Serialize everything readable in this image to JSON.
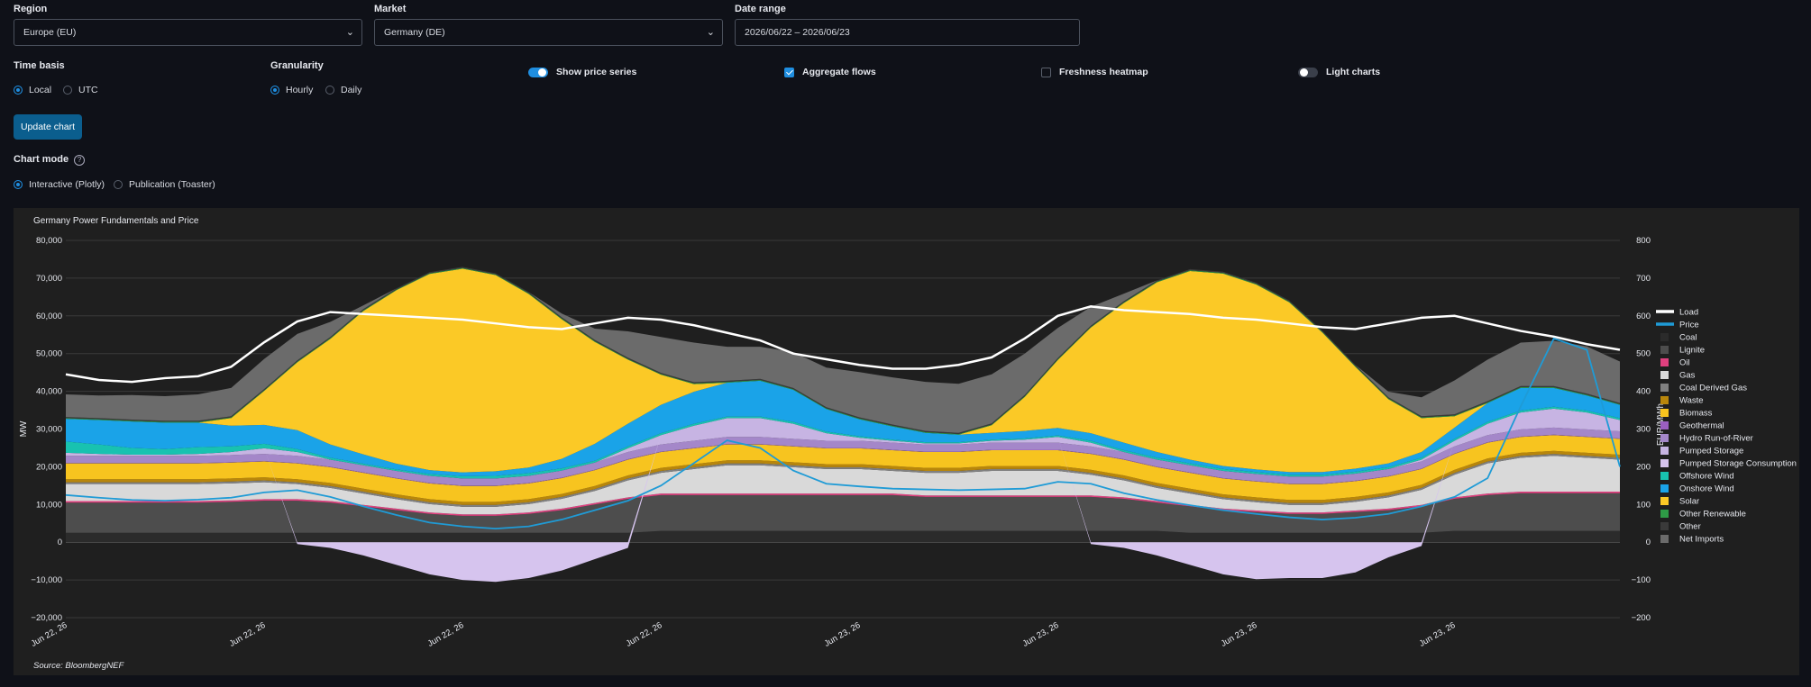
{
  "controls": {
    "region": {
      "label": "Region",
      "value": "Europe (EU)"
    },
    "market": {
      "label": "Market",
      "value": "Germany (DE)"
    },
    "date_range": {
      "label": "Date range",
      "value": "2026/06/22 – 2026/06/23"
    },
    "time_basis": {
      "label": "Time basis",
      "options": [
        "Local",
        "UTC"
      ],
      "selected": "Local"
    },
    "granularity": {
      "label": "Granularity",
      "options": [
        "Hourly",
        "Daily"
      ],
      "selected": "Hourly"
    },
    "toggles": {
      "show_price_series": {
        "label": "Show price series",
        "on": true
      },
      "aggregate_flows": {
        "label": "Aggregate flows",
        "on": true
      },
      "freshness_heatmap": {
        "label": "Freshness heatmap",
        "on": false
      },
      "light_charts": {
        "label": "Light charts",
        "on": false
      }
    },
    "update_button": "Update chart",
    "chart_mode": {
      "label": "Chart mode",
      "help_icon": "?",
      "options": [
        "Interactive (Plotly)",
        "Publication (Toaster)"
      ],
      "selected": "Interactive (Plotly)"
    }
  },
  "chart_data": {
    "type": "area",
    "title": "Germany Power Fundamentals and Price",
    "source": "Source: BloombergNEF",
    "ylabel": "MW",
    "y2label": "EUR/MWh",
    "ylim": [
      -20000,
      80000
    ],
    "y2lim": [
      -200,
      800
    ],
    "yticks": [
      "80,000",
      "70,000",
      "60,000",
      "50,000",
      "40,000",
      "30,000",
      "20,000",
      "10,000",
      "0",
      "−10,000",
      "−20,000"
    ],
    "y2ticks": [
      "800",
      "700",
      "600",
      "500",
      "400",
      "300",
      "200",
      "100",
      "0",
      "−100",
      "−200"
    ],
    "xtick_labels": [
      "Jun 22, 26",
      "Jun 22, 26",
      "Jun 22, 26",
      "Jun 22, 26",
      "Jun 23, 26",
      "Jun 23, 26",
      "Jun 23, 26",
      "Jun 23, 26"
    ],
    "x": [
      0,
      1,
      2,
      3,
      4,
      5,
      6,
      7,
      8,
      9,
      10,
      11,
      12,
      13,
      14,
      15,
      16,
      17,
      18,
      19,
      20,
      21,
      22,
      23,
      24,
      25,
      26,
      27,
      28,
      29,
      30,
      31,
      32,
      33,
      34,
      35,
      36,
      37,
      38,
      39,
      40,
      41,
      42,
      43,
      44,
      45,
      46,
      47
    ],
    "legend_position": "right",
    "series": [
      {
        "name": "Load",
        "kind": "line",
        "axis": "y",
        "color": "#ffffff",
        "values": [
          44500,
          43000,
          42500,
          43500,
          44000,
          46500,
          53000,
          58500,
          61000,
          60500,
          60000,
          59500,
          59000,
          58000,
          57000,
          56500,
          58000,
          59500,
          59000,
          57500,
          55500,
          53500,
          50000,
          48500,
          47000,
          46000,
          46000,
          47000,
          49000,
          54000,
          60000,
          62500,
          61500,
          61000,
          60500,
          59500,
          59000,
          58000,
          57000,
          56500,
          58000,
          59500,
          60000,
          58000,
          56000,
          54500,
          52500,
          51000
        ]
      },
      {
        "name": "Price",
        "kind": "line",
        "axis": "y2",
        "color": "#1f9bd6",
        "values": [
          125,
          118,
          112,
          110,
          113,
          118,
          132,
          138,
          120,
          95,
          72,
          52,
          42,
          36,
          42,
          60,
          85,
          110,
          150,
          210,
          270,
          250,
          190,
          155,
          148,
          142,
          140,
          138,
          140,
          142,
          160,
          155,
          130,
          112,
          98,
          85,
          75,
          66,
          60,
          65,
          75,
          95,
          120,
          170,
          360,
          540,
          510,
          200
        ]
      },
      {
        "name": "Coal",
        "color": "#2b2b2b",
        "values": [
          2500,
          2500,
          2500,
          2500,
          2500,
          2500,
          2500,
          2500,
          2500,
          2500,
          2500,
          2500,
          2500,
          2500,
          2500,
          2500,
          2500,
          2500,
          3000,
          3000,
          3000,
          3000,
          3000,
          3000,
          3000,
          3000,
          3000,
          3000,
          3000,
          3000,
          3000,
          3000,
          3000,
          3000,
          2500,
          2500,
          2500,
          2500,
          2500,
          2500,
          2500,
          2500,
          3000,
          3000,
          3000,
          3000,
          3000,
          3000
        ]
      },
      {
        "name": "Lignite",
        "color": "#4d4d4d",
        "values": [
          8000,
          8000,
          8000,
          8000,
          8000,
          8200,
          8500,
          8500,
          8000,
          7000,
          6000,
          5000,
          4500,
          4500,
          5000,
          6000,
          7500,
          9000,
          9500,
          9500,
          9500,
          9500,
          9500,
          9500,
          9500,
          9500,
          9000,
          9000,
          9000,
          9000,
          9000,
          9000,
          8500,
          7500,
          7000,
          6000,
          5500,
          5000,
          5000,
          5500,
          6000,
          7000,
          8500,
          9500,
          10000,
          10000,
          10000,
          10000
        ]
      },
      {
        "name": "Oil",
        "color": "#e0407f",
        "values": [
          400,
          400,
          400,
          400,
          400,
          400,
          400,
          400,
          400,
          400,
          400,
          400,
          400,
          400,
          400,
          400,
          400,
          400,
          400,
          400,
          400,
          400,
          400,
          400,
          400,
          400,
          400,
          400,
          400,
          400,
          400,
          400,
          400,
          400,
          400,
          400,
          400,
          400,
          400,
          400,
          400,
          400,
          400,
          400,
          400,
          400,
          400,
          400
        ]
      },
      {
        "name": "Gas",
        "color": "#d9d9d9",
        "values": [
          4500,
          4500,
          4500,
          4500,
          4500,
          4500,
          4500,
          4000,
          3500,
          3000,
          2500,
          2200,
          2000,
          2000,
          2200,
          2600,
          3200,
          4500,
          5500,
          6500,
          7500,
          7500,
          7000,
          6500,
          6500,
          6000,
          6000,
          6000,
          6500,
          6500,
          6500,
          5500,
          4500,
          3500,
          3000,
          2500,
          2200,
          2000,
          2000,
          2300,
          3000,
          4000,
          6000,
          8000,
          9000,
          9500,
          9000,
          8500
        ]
      },
      {
        "name": "Coal Derived Gas",
        "color": "#808080",
        "values": [
          500,
          500,
          500,
          500,
          500,
          500,
          500,
          500,
          500,
          500,
          500,
          500,
          500,
          500,
          500,
          500,
          500,
          500,
          500,
          500,
          500,
          500,
          500,
          500,
          500,
          500,
          500,
          500,
          500,
          500,
          500,
          500,
          500,
          500,
          500,
          500,
          500,
          500,
          500,
          500,
          500,
          500,
          500,
          500,
          500,
          500,
          500,
          500
        ]
      },
      {
        "name": "Waste",
        "color": "#b8860b",
        "values": [
          800,
          800,
          800,
          800,
          800,
          800,
          800,
          800,
          800,
          800,
          800,
          800,
          800,
          800,
          800,
          800,
          800,
          800,
          800,
          800,
          800,
          800,
          800,
          800,
          800,
          800,
          800,
          800,
          800,
          800,
          800,
          800,
          800,
          800,
          800,
          800,
          800,
          800,
          800,
          800,
          800,
          800,
          800,
          800,
          800,
          800,
          800,
          800
        ]
      },
      {
        "name": "Biomass",
        "color": "#f7c41f",
        "values": [
          4200,
          4200,
          4200,
          4200,
          4200,
          4200,
          4200,
          4200,
          4200,
          4200,
          4200,
          4200,
          4200,
          4200,
          4200,
          4200,
          4200,
          4200,
          4200,
          4200,
          4200,
          4200,
          4200,
          4200,
          4200,
          4200,
          4200,
          4200,
          4200,
          4200,
          4200,
          4200,
          4200,
          4200,
          4200,
          4200,
          4200,
          4200,
          4200,
          4200,
          4200,
          4200,
          4200,
          4200,
          4200,
          4200,
          4200,
          4200
        ]
      },
      {
        "name": "Geothermal",
        "color": "#9b5fc0",
        "values": [
          100,
          100,
          100,
          100,
          100,
          100,
          100,
          100,
          100,
          100,
          100,
          100,
          100,
          100,
          100,
          100,
          100,
          100,
          100,
          100,
          100,
          100,
          100,
          100,
          100,
          100,
          100,
          100,
          100,
          100,
          100,
          100,
          100,
          100,
          100,
          100,
          100,
          100,
          100,
          100,
          100,
          100,
          100,
          100,
          100,
          100,
          100,
          100
        ]
      },
      {
        "name": "Hydro Run-of-River",
        "color": "#a487c9",
        "values": [
          1900,
          1900,
          1900,
          1900,
          1900,
          1900,
          1900,
          1900,
          1900,
          1900,
          1900,
          1900,
          1900,
          1900,
          1900,
          1900,
          1900,
          1900,
          1900,
          1900,
          1900,
          1900,
          1900,
          1900,
          1900,
          1900,
          1900,
          1900,
          1900,
          1900,
          1900,
          1900,
          1900,
          1900,
          1900,
          1900,
          1900,
          1900,
          1900,
          1900,
          1900,
          1900,
          1900,
          1900,
          1900,
          1900,
          1900,
          1900
        ]
      },
      {
        "name": "Pumped Storage",
        "color": "#c7b4e3",
        "values": [
          800,
          500,
          300,
          300,
          500,
          800,
          1500,
          1000,
          0,
          0,
          0,
          0,
          0,
          0,
          0,
          0,
          0,
          1000,
          2500,
          4000,
          5000,
          5000,
          4000,
          2000,
          800,
          500,
          300,
          300,
          500,
          800,
          1500,
          1000,
          0,
          0,
          0,
          0,
          0,
          0,
          0,
          0,
          0,
          500,
          1500,
          3000,
          4500,
          5000,
          4500,
          3000
        ]
      },
      {
        "name": "Pumped Storage Consumption",
        "color": "#d6c4ee",
        "values": [
          0,
          0,
          0,
          0,
          0,
          0,
          0,
          -500,
          -1500,
          -3500,
          -6000,
          -8500,
          -10000,
          -10500,
          -9500,
          -7500,
          -4500,
          -1500,
          0,
          0,
          0,
          0,
          0,
          0,
          0,
          0,
          0,
          0,
          0,
          0,
          0,
          -500,
          -1500,
          -3500,
          -6000,
          -8500,
          -9800,
          -9500,
          -9500,
          -8000,
          -4000,
          -1000,
          0,
          0,
          0,
          0,
          0,
          0
        ]
      },
      {
        "name": "Offshore Wind",
        "color": "#18c2b0",
        "values": [
          3000,
          2500,
          1800,
          1500,
          1800,
          1500,
          1200,
          800,
          500,
          400,
          400,
          500,
          600,
          700,
          700,
          600,
          500,
          500,
          500,
          500,
          400,
          400,
          500,
          400,
          400,
          300,
          300,
          300,
          300,
          300,
          400,
          500,
          500,
          500,
          500,
          500,
          500,
          500,
          500,
          500,
          500,
          500,
          500,
          500,
          500,
          500,
          500,
          500
        ]
      },
      {
        "name": "Onshore Wind",
        "color": "#1aa3e8",
        "values": [
          6000,
          6500,
          7000,
          7000,
          6500,
          5500,
          5000,
          5000,
          3500,
          2500,
          1500,
          1000,
          1000,
          1200,
          1500,
          2500,
          4500,
          6000,
          7500,
          8500,
          9000,
          9500,
          8500,
          6000,
          4500,
          3500,
          2500,
          2000,
          1800,
          2000,
          2000,
          2000,
          2000,
          1500,
          1000,
          800,
          700,
          700,
          700,
          800,
          1000,
          1500,
          3000,
          5000,
          6000,
          5000,
          4000,
          3500
        ]
      },
      {
        "name": "Solar",
        "color": "#fbc926",
        "values": [
          0,
          0,
          0,
          0,
          0,
          2000,
          9000,
          18000,
          28000,
          38000,
          46000,
          52000,
          54000,
          52000,
          46000,
          37000,
          27000,
          17000,
          8000,
          2000,
          0,
          0,
          0,
          0,
          0,
          0,
          0,
          0,
          2000,
          9000,
          18000,
          28000,
          37000,
          45000,
          50000,
          51000,
          49000,
          45000,
          37000,
          27000,
          17000,
          9000,
          3000,
          0,
          0,
          0,
          0,
          0
        ]
      },
      {
        "name": "Other Renewable",
        "color": "#2e9a46",
        "values": [
          200,
          200,
          200,
          200,
          200,
          200,
          200,
          200,
          200,
          200,
          200,
          200,
          200,
          200,
          200,
          200,
          200,
          200,
          200,
          200,
          200,
          200,
          200,
          200,
          200,
          200,
          200,
          200,
          200,
          200,
          200,
          200,
          200,
          200,
          200,
          200,
          200,
          200,
          200,
          200,
          200,
          200,
          200,
          200,
          200,
          200,
          200,
          200
        ]
      },
      {
        "name": "Other",
        "color": "#3a3a3a",
        "values": [
          300,
          300,
          300,
          300,
          300,
          300,
          300,
          300,
          300,
          300,
          300,
          300,
          300,
          300,
          300,
          300,
          300,
          300,
          300,
          300,
          300,
          300,
          300,
          300,
          300,
          300,
          300,
          300,
          300,
          300,
          300,
          300,
          300,
          300,
          300,
          300,
          300,
          300,
          300,
          300,
          300,
          300,
          300,
          300,
          300,
          300,
          300,
          300
        ]
      },
      {
        "name": "Net Imports",
        "color": "#6b6b6b",
        "values": [
          6000,
          6000,
          6500,
          6500,
          7000,
          7500,
          8000,
          7000,
          4000,
          1000,
          0,
          0,
          0,
          0,
          0,
          1000,
          3000,
          7000,
          9500,
          10500,
          9000,
          8500,
          9500,
          10500,
          12000,
          12500,
          13000,
          13000,
          13000,
          11000,
          8000,
          5000,
          2000,
          0,
          0,
          0,
          0,
          0,
          0,
          0,
          1500,
          5000,
          9000,
          11000,
          11500,
          12000,
          12500,
          11000
        ]
      }
    ]
  }
}
